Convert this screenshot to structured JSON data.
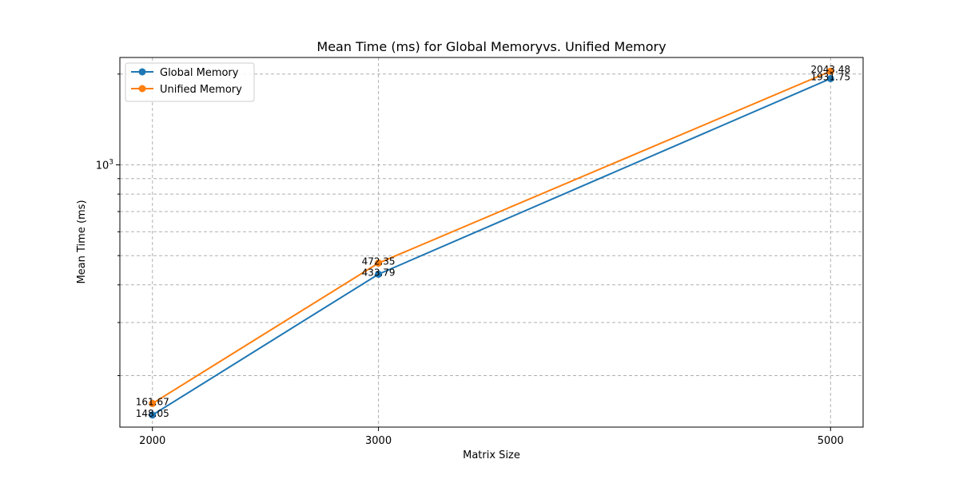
{
  "chart_data": {
    "type": "line",
    "title": "Mean Time (ms) for Global Memoryvs. Unified Memory",
    "xlabel": "Matrix Size",
    "ylabel": "Mean Time (ms)",
    "x": [
      2000,
      3000,
      5000
    ],
    "x_tick_labels": [
      "2000",
      "3000",
      "5000"
    ],
    "y_scale": "log",
    "y_tick_label": {
      "base": "10",
      "exponent": "3"
    },
    "xlim": [
      1856,
      5144
    ],
    "ylim": [
      135,
      2270
    ],
    "grid": true,
    "legend_position": "top-left",
    "series": [
      {
        "name": "Global Memory",
        "color": "#1f77b4",
        "values": [
          148.05,
          433.79,
          1931.75
        ],
        "value_labels": [
          "148.05",
          "433.79",
          "1931.75"
        ]
      },
      {
        "name": "Unified Memory",
        "color": "#ff7f0e",
        "values": [
          161.67,
          472.35,
          2043.48
        ],
        "value_labels": [
          "161.67",
          "472.35",
          "2043.48"
        ]
      }
    ]
  }
}
